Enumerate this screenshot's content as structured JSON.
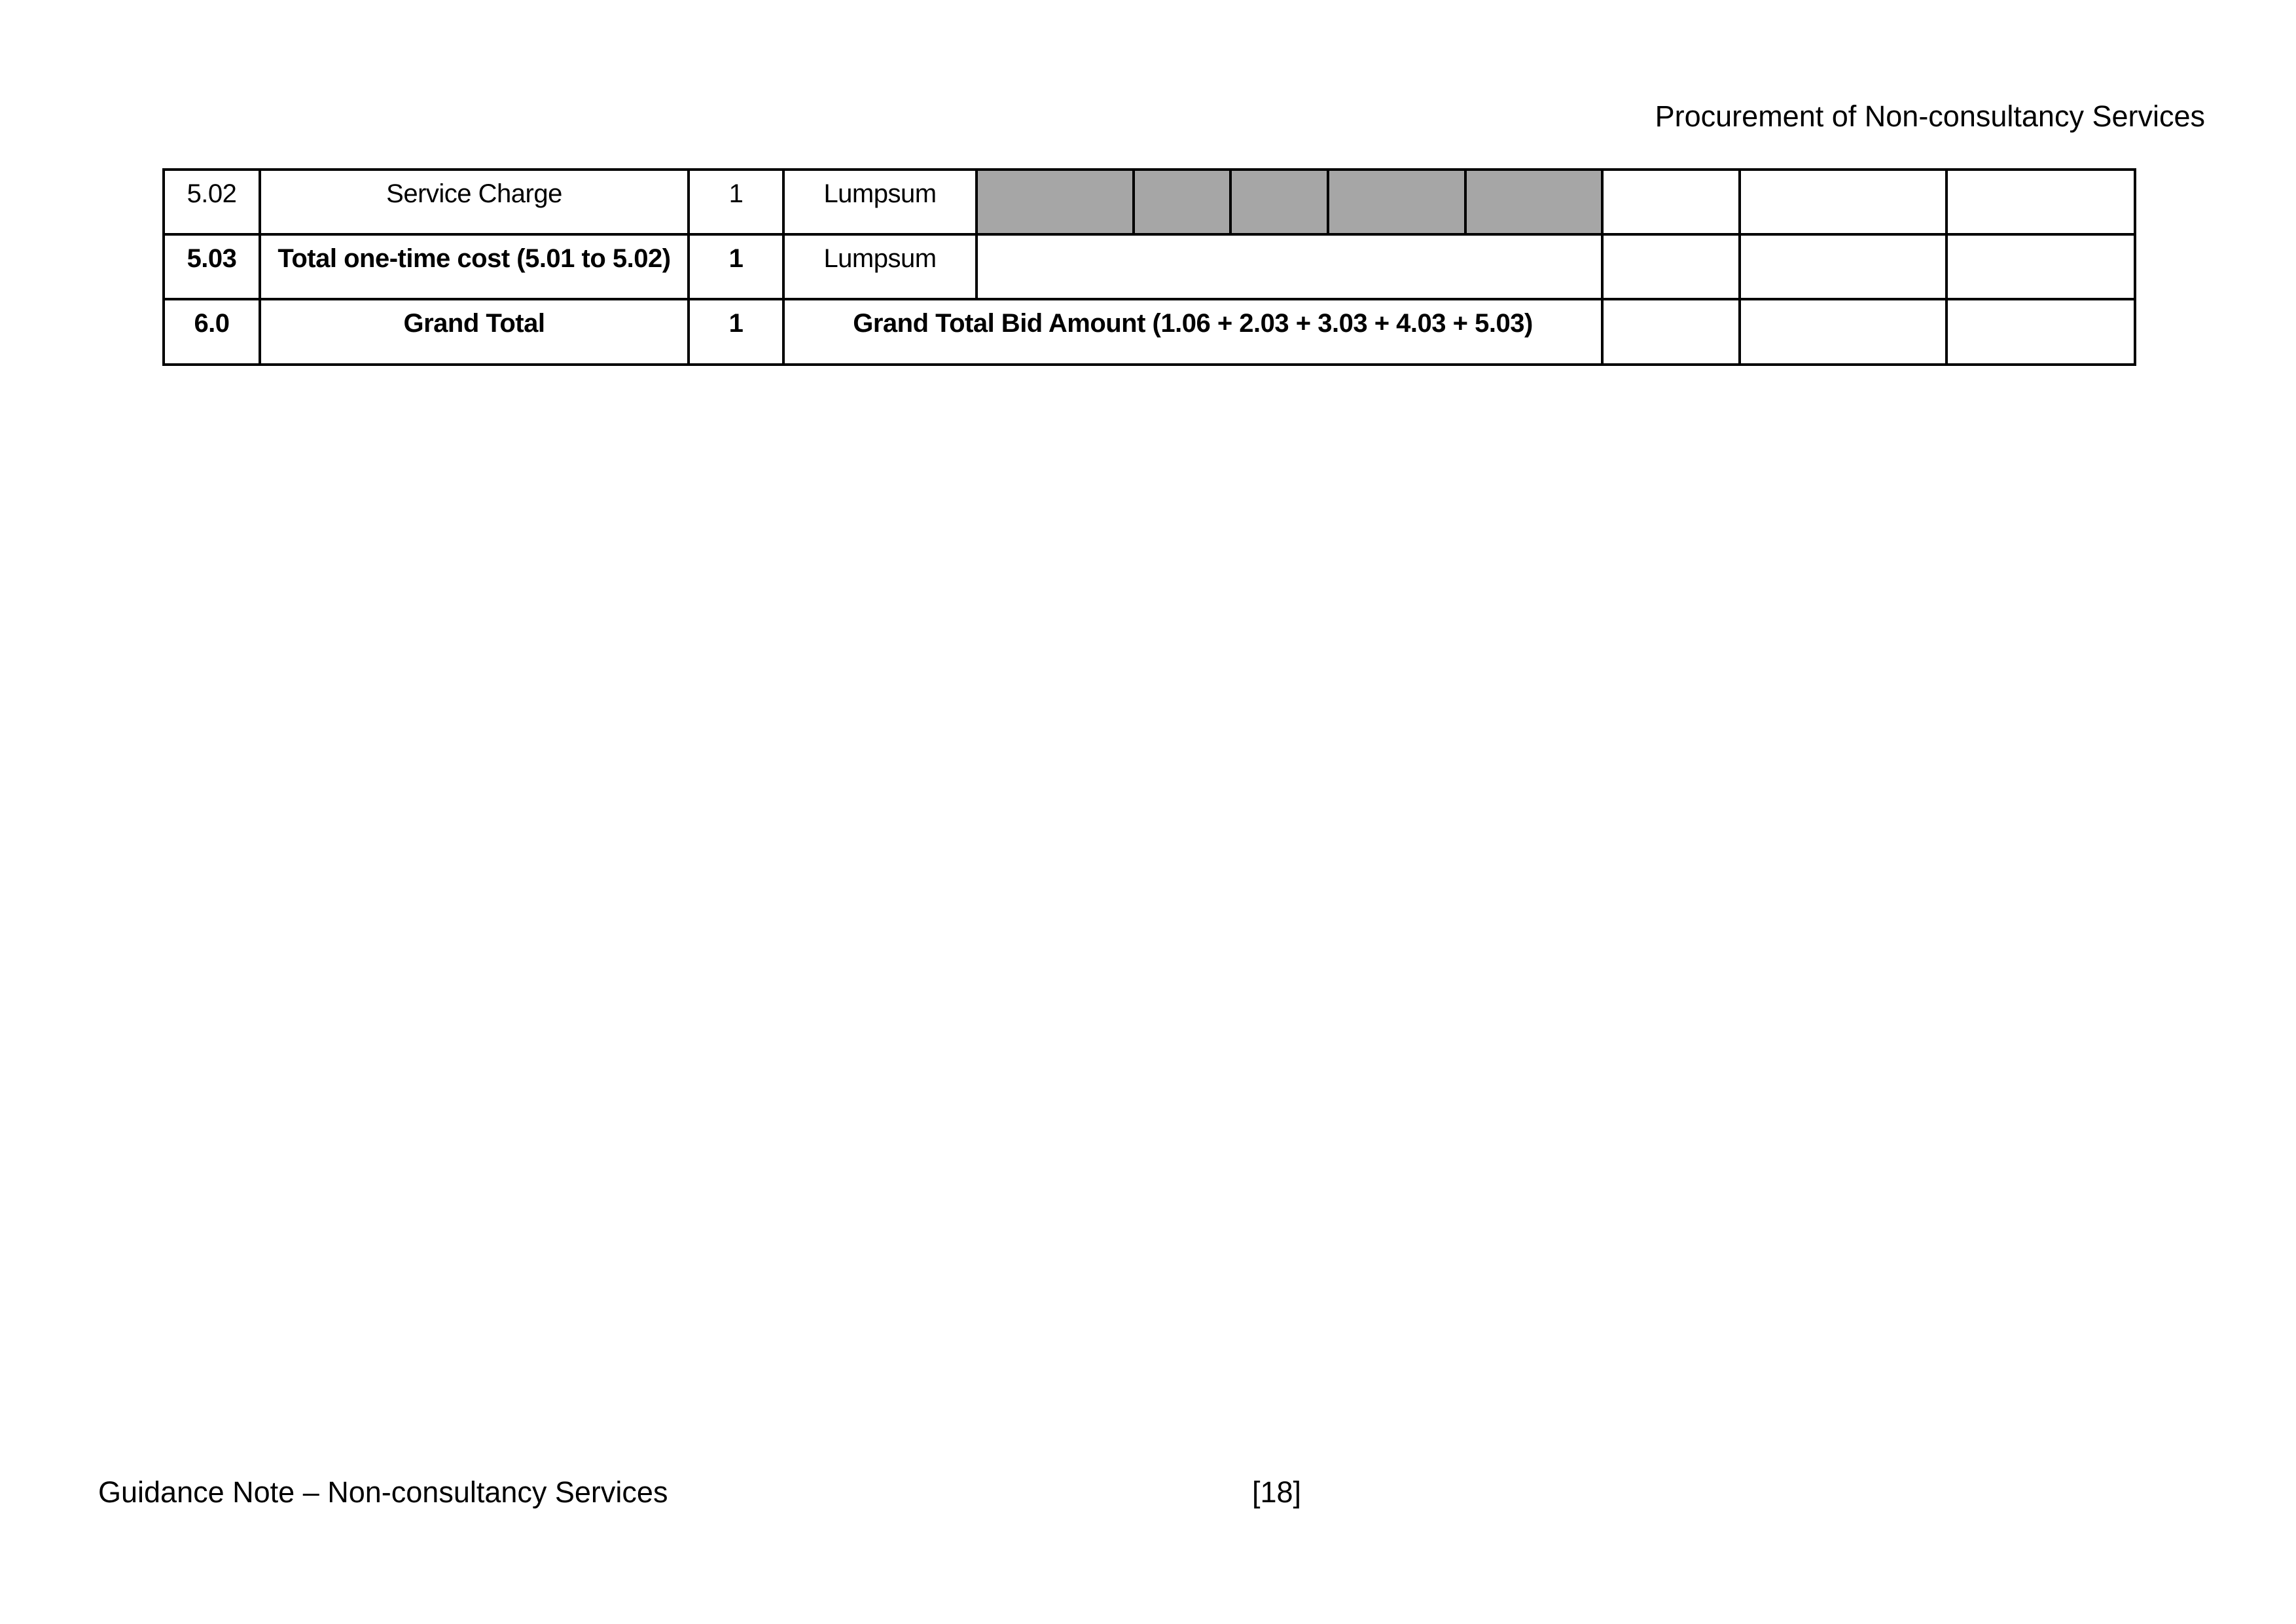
{
  "header": {
    "title": "Procurement of Non-consultancy Services"
  },
  "table": {
    "shading_color": "#a6a6a6",
    "rows": [
      {
        "sl_no": "5.02",
        "description": "Service Charge",
        "qty": "1",
        "unit": "Lumpsum"
      },
      {
        "sl_no": "5.03",
        "description": "Total one-time cost (5.01 to 5.02)",
        "qty": "1",
        "unit": "Lumpsum"
      },
      {
        "sl_no": "6.0",
        "description": "Grand Total",
        "qty": "1",
        "merged_label": "Grand Total Bid Amount (1.06 + 2.03 + 3.03 + 4.03 + 5.03)"
      }
    ]
  },
  "footer": {
    "left": "Guidance Note – Non-consultancy Services",
    "page_number": "[18]"
  }
}
